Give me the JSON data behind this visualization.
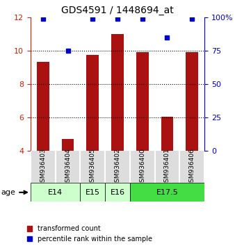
{
  "title": "GDS4591 / 1448694_at",
  "samples": [
    "GSM936403",
    "GSM936404",
    "GSM936405",
    "GSM936402",
    "GSM936400",
    "GSM936401",
    "GSM936406"
  ],
  "transformed_counts": [
    9.35,
    4.7,
    9.75,
    11.0,
    9.9,
    6.05,
    9.9
  ],
  "percentile_ranks": [
    99,
    75,
    99,
    99,
    99,
    85,
    99
  ],
  "age_groups": [
    {
      "label": "E14",
      "samples": [
        "GSM936403",
        "GSM936404"
      ],
      "color": "#ccffcc"
    },
    {
      "label": "E15",
      "samples": [
        "GSM936405"
      ],
      "color": "#ccffcc"
    },
    {
      "label": "E16",
      "samples": [
        "GSM936402"
      ],
      "color": "#ccffcc"
    },
    {
      "label": "E17.5",
      "samples": [
        "GSM936400",
        "GSM936401",
        "GSM936406"
      ],
      "color": "#44dd44"
    }
  ],
  "ylim_left": [
    4,
    12
  ],
  "ylim_right": [
    0,
    100
  ],
  "yticks_left": [
    4,
    6,
    8,
    10,
    12
  ],
  "yticks_right": [
    0,
    25,
    50,
    75,
    100
  ],
  "ytick_labels_right": [
    "0",
    "25",
    "50",
    "75",
    "100%"
  ],
  "bar_color": "#aa1111",
  "dot_color": "#0000cc",
  "grid_color": "#000000",
  "bar_width": 0.5,
  "left_axis_color": "#cc2200",
  "right_axis_color": "#0000cc",
  "legend_items": [
    {
      "label": "transformed count",
      "color": "#aa1111",
      "marker": "s"
    },
    {
      "label": "percentile rank within the sample",
      "color": "#0000cc",
      "marker": "s"
    }
  ],
  "age_label": "age",
  "fig_width": 3.38,
  "fig_height": 3.54,
  "dpi": 100
}
